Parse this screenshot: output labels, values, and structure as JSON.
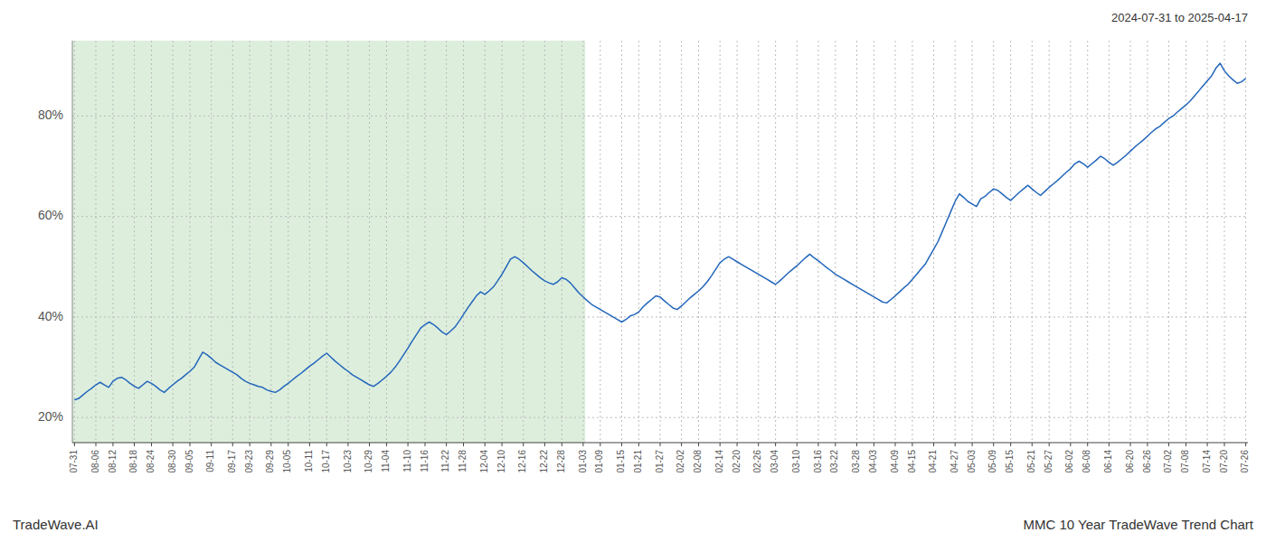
{
  "chart_data": {
    "type": "line",
    "title": "2024-07-31 to 2025-04-17",
    "annotations": [
      "TradeWave.AI",
      "MMC 10 Year TradeWave Trend Chart"
    ],
    "color": "#2266bb",
    "grid": true,
    "ylim": [
      15,
      95
    ],
    "yticks": [
      {
        "value": 20,
        "label": "20%"
      },
      {
        "value": 40,
        "label": "40%"
      },
      {
        "value": 60,
        "label": "60%"
      },
      {
        "value": 80,
        "label": "80%"
      }
    ],
    "shaded_region": {
      "start": 0,
      "end": 119,
      "color": "#ddeedd"
    },
    "categories": [
      "07-31",
      null,
      null,
      null,
      null,
      "08-06",
      null,
      null,
      null,
      "08-12",
      null,
      null,
      null,
      null,
      "08-18",
      null,
      null,
      null,
      "08-24",
      null,
      null,
      null,
      null,
      "08-30",
      null,
      null,
      null,
      "09-05",
      null,
      null,
      null,
      null,
      "09-11",
      null,
      null,
      null,
      null,
      "09-17",
      null,
      null,
      null,
      "09-23",
      null,
      null,
      null,
      null,
      "09-29",
      null,
      null,
      null,
      "10-05",
      null,
      null,
      null,
      null,
      "10-11",
      null,
      null,
      null,
      "10-17",
      null,
      null,
      null,
      null,
      "10-23",
      null,
      null,
      null,
      null,
      "10-29",
      null,
      null,
      null,
      "11-04",
      null,
      null,
      null,
      null,
      "11-10",
      null,
      null,
      null,
      "11-16",
      null,
      null,
      null,
      null,
      "11-22",
      null,
      null,
      null,
      "11-28",
      null,
      null,
      null,
      null,
      "12-04",
      null,
      null,
      null,
      "12-10",
      null,
      null,
      null,
      null,
      "12-16",
      null,
      null,
      null,
      null,
      "12-22",
      null,
      null,
      null,
      "12-28",
      null,
      null,
      null,
      null,
      "01-03",
      null,
      null,
      null,
      "01-09",
      null,
      null,
      null,
      null,
      "01-15",
      null,
      null,
      null,
      "01-21",
      null,
      null,
      null,
      null,
      "01-27",
      null,
      null,
      null,
      null,
      "02-02",
      null,
      null,
      null,
      "02-08",
      null,
      null,
      null,
      null,
      "02-14",
      null,
      null,
      null,
      "02-20",
      null,
      null,
      null,
      null,
      "02-26",
      null,
      null,
      null,
      "03-04",
      null,
      null,
      null,
      null,
      "03-10",
      null,
      null,
      null,
      null,
      "03-16",
      null,
      null,
      null,
      "03-22",
      null,
      null,
      null,
      null,
      "03-28",
      null,
      null,
      null,
      "04-03",
      null,
      null,
      null,
      null,
      "04-09",
      null,
      null,
      null,
      "04-15",
      null,
      null,
      null,
      null,
      "04-21",
      null,
      null,
      null,
      null,
      "04-27",
      null,
      null,
      null,
      "05-03",
      null,
      null,
      null,
      null,
      "05-09",
      null,
      null,
      null,
      "05-15",
      null,
      null,
      null,
      null,
      "05-21",
      null,
      null,
      null,
      "05-27",
      null,
      null,
      null,
      null,
      "06-02",
      null,
      null,
      null,
      "06-08",
      null,
      null,
      null,
      null,
      "06-14",
      null,
      null,
      null,
      null,
      "06-20",
      null,
      null,
      null,
      "06-26",
      null,
      null,
      null,
      null,
      "07-02",
      null,
      null,
      null,
      "07-08",
      null,
      null,
      null,
      null,
      "07-14",
      null,
      null,
      null,
      "07-20",
      null,
      null,
      null,
      null,
      "07-26"
    ],
    "values": [
      23.5,
      23.8,
      24.5,
      25.2,
      25.8,
      26.5,
      27.0,
      26.5,
      26.0,
      27.2,
      27.8,
      28.0,
      27.5,
      26.8,
      26.2,
      25.8,
      26.5,
      27.2,
      26.8,
      26.2,
      25.5,
      25.0,
      25.8,
      26.5,
      27.2,
      27.8,
      28.5,
      29.2,
      30.0,
      31.5,
      33.0,
      32.5,
      31.8,
      31.0,
      30.5,
      30.0,
      29.5,
      29.0,
      28.5,
      27.8,
      27.2,
      26.8,
      26.5,
      26.2,
      26.0,
      25.5,
      25.2,
      25.0,
      25.5,
      26.2,
      26.8,
      27.5,
      28.2,
      28.8,
      29.5,
      30.2,
      30.8,
      31.5,
      32.2,
      32.8,
      32.0,
      31.2,
      30.5,
      29.8,
      29.2,
      28.5,
      28.0,
      27.5,
      27.0,
      26.5,
      26.2,
      26.8,
      27.5,
      28.2,
      29.0,
      30.0,
      31.2,
      32.5,
      33.8,
      35.2,
      36.5,
      37.8,
      38.5,
      39.0,
      38.5,
      37.8,
      37.0,
      36.5,
      37.2,
      38.0,
      39.2,
      40.5,
      41.8,
      43.0,
      44.2,
      45.0,
      44.5,
      45.2,
      46.0,
      47.2,
      48.5,
      50.0,
      51.5,
      52.0,
      51.5,
      50.8,
      50.0,
      49.2,
      48.5,
      47.8,
      47.2,
      46.8,
      46.5,
      47.0,
      47.8,
      47.5,
      46.8,
      45.8,
      44.8,
      44.0,
      43.2,
      42.5,
      42.0,
      41.5,
      41.0,
      40.5,
      40.0,
      39.5,
      39.0,
      39.5,
      40.2,
      40.5,
      41.0,
      42.0,
      42.8,
      43.5,
      44.2,
      44.0,
      43.2,
      42.5,
      41.8,
      41.5,
      42.2,
      43.0,
      43.8,
      44.5,
      45.2,
      46.0,
      47.0,
      48.2,
      49.5,
      50.8,
      51.5,
      52.0,
      51.5,
      51.0,
      50.5,
      50.0,
      49.5,
      49.0,
      48.5,
      48.0,
      47.5,
      47.0,
      46.5,
      47.2,
      48.0,
      48.8,
      49.5,
      50.2,
      51.0,
      51.8,
      52.5,
      51.8,
      51.2,
      50.5,
      49.8,
      49.2,
      48.5,
      48.0,
      47.5,
      47.0,
      46.5,
      46.0,
      45.5,
      45.0,
      44.5,
      44.0,
      43.5,
      43.0,
      42.8,
      43.5,
      44.2,
      45.0,
      45.8,
      46.5,
      47.5,
      48.5,
      49.5,
      50.5,
      52.0,
      53.5,
      55.0,
      57.0,
      59.0,
      61.0,
      63.0,
      64.5,
      63.8,
      63.0,
      62.5,
      62.0,
      63.5,
      64.0,
      64.8,
      65.5,
      65.2,
      64.5,
      63.8,
      63.2,
      64.0,
      64.8,
      65.5,
      66.2,
      65.5,
      64.8,
      64.2,
      65.0,
      65.8,
      66.5,
      67.2,
      68.0,
      68.8,
      69.5,
      70.5,
      71.0,
      70.5,
      69.8,
      70.5,
      71.2,
      72.0,
      71.5,
      70.8,
      70.2,
      70.8,
      71.5,
      72.2,
      73.0,
      73.8,
      74.5,
      75.2,
      76.0,
      76.8,
      77.5,
      78.0,
      78.8,
      79.5,
      80.0,
      80.8,
      81.5,
      82.2,
      83.0,
      84.0,
      85.0,
      86.0,
      87.0,
      88.0,
      89.5,
      90.5,
      89.0,
      88.0,
      87.2,
      86.5,
      86.8,
      87.5
    ]
  }
}
